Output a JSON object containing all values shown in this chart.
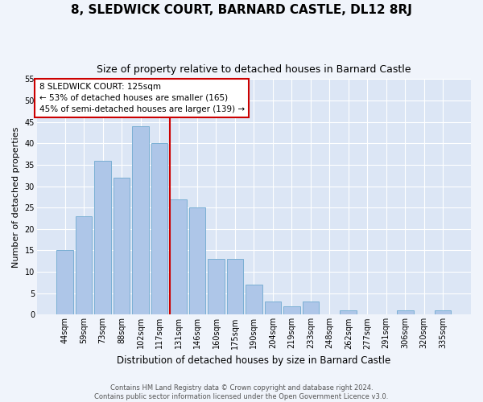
{
  "title": "8, SLEDWICK COURT, BARNARD CASTLE, DL12 8RJ",
  "subtitle": "Size of property relative to detached houses in Barnard Castle",
  "xlabel": "Distribution of detached houses by size in Barnard Castle",
  "ylabel": "Number of detached properties",
  "footer_line1": "Contains HM Land Registry data © Crown copyright and database right 2024.",
  "footer_line2": "Contains public sector information licensed under the Open Government Licence v3.0.",
  "categories": [
    "44sqm",
    "59sqm",
    "73sqm",
    "88sqm",
    "102sqm",
    "117sqm",
    "131sqm",
    "146sqm",
    "160sqm",
    "175sqm",
    "190sqm",
    "204sqm",
    "219sqm",
    "233sqm",
    "248sqm",
    "262sqm",
    "277sqm",
    "291sqm",
    "306sqm",
    "320sqm",
    "335sqm"
  ],
  "values": [
    15,
    23,
    36,
    32,
    44,
    40,
    27,
    25,
    13,
    13,
    7,
    3,
    2,
    3,
    0,
    1,
    0,
    0,
    1,
    0,
    1
  ],
  "bar_color": "#aec6e8",
  "bar_edgecolor": "#7aafd4",
  "figure_facecolor": "#f0f4fb",
  "axes_facecolor": "#dce6f5",
  "grid_color": "#ffffff",
  "property_label": "8 SLEDWICK COURT: 125sqm",
  "annotation_line1": "← 53% of detached houses are smaller (165)",
  "annotation_line2": "45% of semi-detached houses are larger (139) →",
  "annotation_box_facecolor": "#ffffff",
  "annotation_box_edgecolor": "#cc0000",
  "red_line_color": "#cc0000",
  "ylim": [
    0,
    55
  ],
  "yticks": [
    0,
    5,
    10,
    15,
    20,
    25,
    30,
    35,
    40,
    45,
    50,
    55
  ],
  "title_fontsize": 11,
  "subtitle_fontsize": 9,
  "ylabel_fontsize": 8,
  "xlabel_fontsize": 8.5,
  "tick_fontsize": 7,
  "annotation_fontsize": 7.5,
  "footer_fontsize": 6
}
